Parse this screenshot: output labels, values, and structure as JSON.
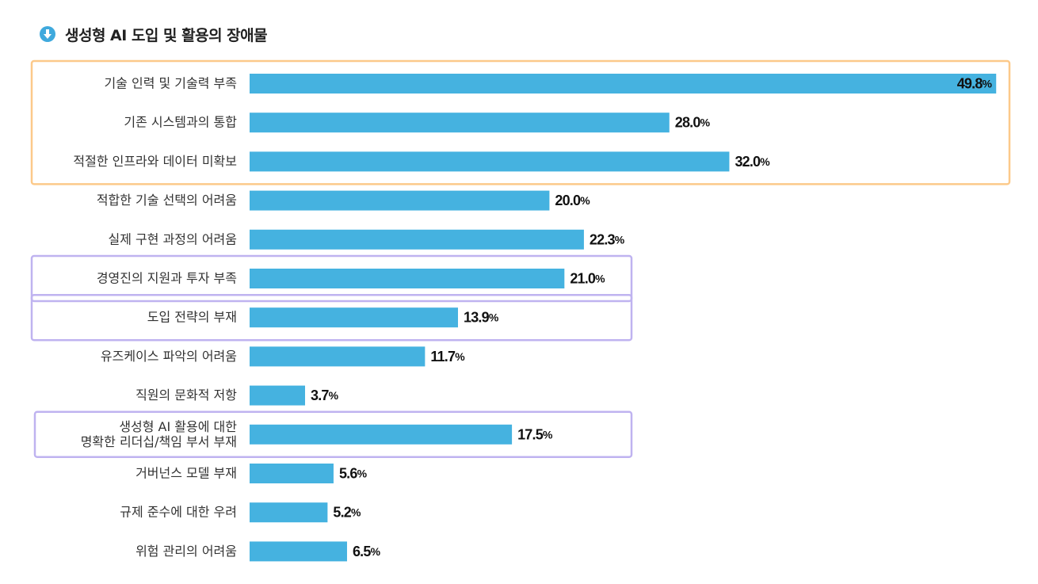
{
  "chart_data": {
    "type": "bar",
    "orientation": "horizontal",
    "title": "생성형 AI 도입 및 활용의 장애물",
    "categories": [
      [
        "기술 인력 및 기술력 부족"
      ],
      [
        "기존 시스템과의 통합"
      ],
      [
        "적절한 인프라와 데이터 미확보"
      ],
      [
        "적합한 기술 선택의 어려움"
      ],
      [
        "실제 구현 과정의 어려움"
      ],
      [
        "경영진의 지원과 투자 부족"
      ],
      [
        "도입 전략의 부재"
      ],
      [
        "유즈케이스 파악의 어려움"
      ],
      [
        "직원의 문화적 저항"
      ],
      [
        "생성형 AI 활용에 대한",
        "명확한 리더십/책임 부서 부재"
      ],
      [
        "거버넌스 모델 부재"
      ],
      [
        "규제 준수에 대한 우려"
      ],
      [
        "위험 관리의 어려움"
      ]
    ],
    "values": [
      49.8,
      28.0,
      32.0,
      20.0,
      22.3,
      21.0,
      13.9,
      11.7,
      3.7,
      17.5,
      5.6,
      5.2,
      6.5
    ],
    "value_labels": [
      "49.8",
      "28.0",
      "32.0",
      "20.0",
      "22.3",
      "21.0",
      "13.9",
      "11.7",
      "3.7",
      "17.5",
      "5.6",
      "5.2",
      "6.5"
    ],
    "unit": "%",
    "xlim": [
      0,
      50
    ],
    "grid": false,
    "bar_color": "#45b2e0",
    "highlight_groups": [
      {
        "rows": [
          0,
          2
        ],
        "color": "#fcc98a"
      },
      {
        "rows": [
          5,
          5
        ],
        "color": "#bfb3f0"
      },
      {
        "rows": [
          6,
          6
        ],
        "color": "#bfb3f0"
      },
      {
        "rows": [
          9,
          9
        ],
        "color": "#bfb3f0"
      }
    ]
  }
}
